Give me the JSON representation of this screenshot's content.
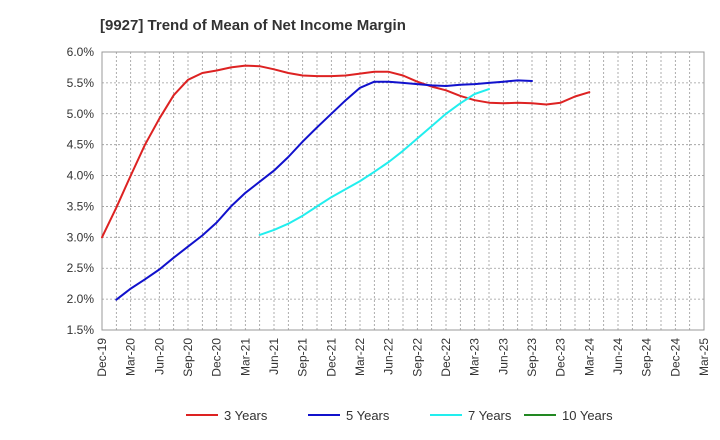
{
  "chart_data": {
    "type": "line",
    "title": "[9927]  Trend of Mean of Net Income Margin",
    "xlabel": "",
    "ylabel": "",
    "x_ticks": [
      "Dec-19",
      "Mar-20",
      "Jun-20",
      "Sep-20",
      "Dec-20",
      "Mar-21",
      "Jun-21",
      "Sep-21",
      "Dec-21",
      "Mar-22",
      "Jun-22",
      "Sep-22",
      "Dec-22",
      "Mar-23",
      "Jun-23",
      "Sep-23",
      "Dec-23",
      "Mar-24",
      "Jun-24",
      "Sep-24",
      "Dec-24",
      "Mar-25"
    ],
    "y_ticks": [
      "1.5%",
      "2.0%",
      "2.5%",
      "3.0%",
      "3.5%",
      "4.0%",
      "4.5%",
      "5.0%",
      "5.5%",
      "6.0%"
    ],
    "ylim": [
      1.5,
      6.0
    ],
    "grid": true,
    "legend_position": "bottom",
    "series": [
      {
        "name": "3 Years",
        "color": "#dd2222",
        "values": [
          3.0,
          3.48,
          4.0,
          4.5,
          4.92,
          5.3,
          5.55,
          5.66,
          5.7,
          5.75,
          5.78,
          5.77,
          5.72,
          5.66,
          5.62,
          5.61,
          5.61,
          5.62,
          5.65,
          5.68,
          5.68,
          5.62,
          5.52,
          5.44,
          5.38,
          5.29,
          5.22,
          5.18,
          5.17,
          5.18,
          5.17,
          5.15,
          5.18,
          5.28,
          5.35
        ]
      },
      {
        "name": "5 Years",
        "color": "#1111cc",
        "values": [
          null,
          1.99,
          2.17,
          2.32,
          2.48,
          2.67,
          2.85,
          3.03,
          3.24,
          3.5,
          3.72,
          3.9,
          4.08,
          4.3,
          4.55,
          4.78,
          5.0,
          5.22,
          5.42,
          5.52,
          5.52,
          5.5,
          5.48,
          5.46,
          5.45,
          5.47,
          5.48,
          5.5,
          5.52,
          5.54,
          5.53
        ]
      },
      {
        "name": "7 Years",
        "color": "#22eeee",
        "values": [
          null,
          null,
          null,
          null,
          null,
          null,
          null,
          null,
          null,
          null,
          null,
          3.04,
          3.12,
          3.22,
          3.35,
          3.5,
          3.65,
          3.78,
          3.91,
          4.06,
          4.22,
          4.4,
          4.6,
          4.8,
          5.0,
          5.17,
          5.32,
          5.4
        ]
      },
      {
        "name": "10 Years",
        "color": "#228822",
        "values": []
      }
    ]
  }
}
